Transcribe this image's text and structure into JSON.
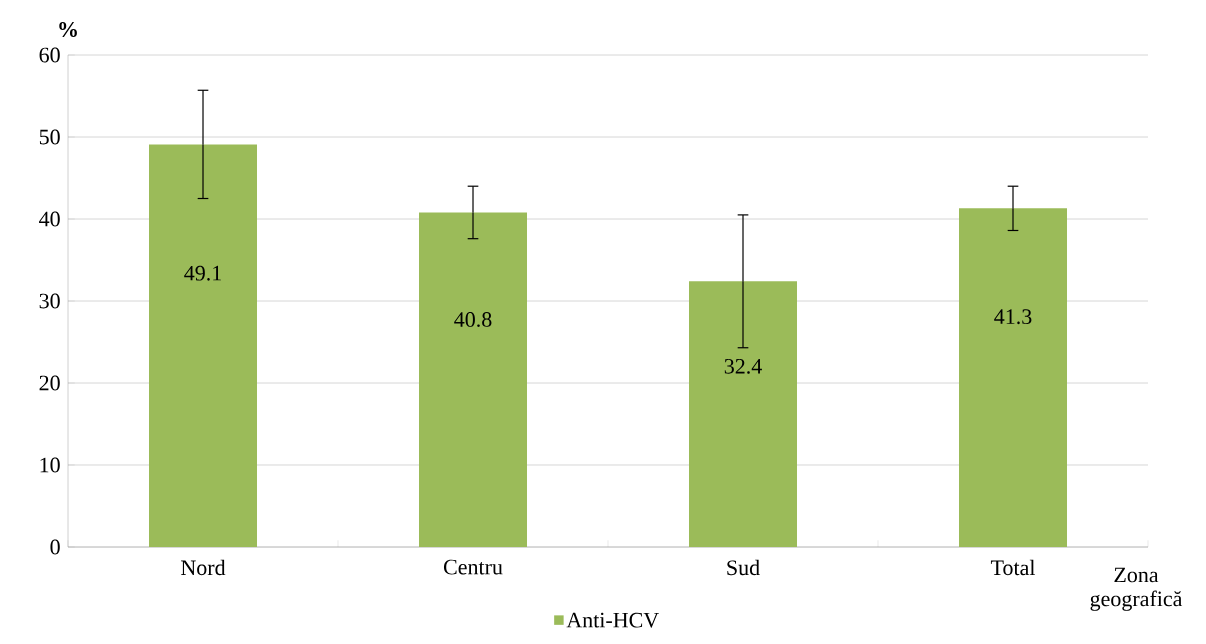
{
  "chart_data": {
    "type": "bar",
    "ylabel": "%",
    "xlabel": "Zona geografică",
    "categories": [
      "Nord",
      "Centru",
      "Sud",
      "Total"
    ],
    "series": [
      {
        "name": "Anti-HCV",
        "color": "#9bbb59",
        "values": [
          49.1,
          40.8,
          32.4,
          41.3
        ],
        "errors": [
          6.6,
          3.2,
          8.1,
          2.7
        ]
      }
    ],
    "ylim": [
      0,
      60
    ],
    "yticks": [
      0,
      10,
      20,
      30,
      40,
      50,
      60
    ],
    "grid": "y",
    "legend": "bottom",
    "data_labels": true
  }
}
